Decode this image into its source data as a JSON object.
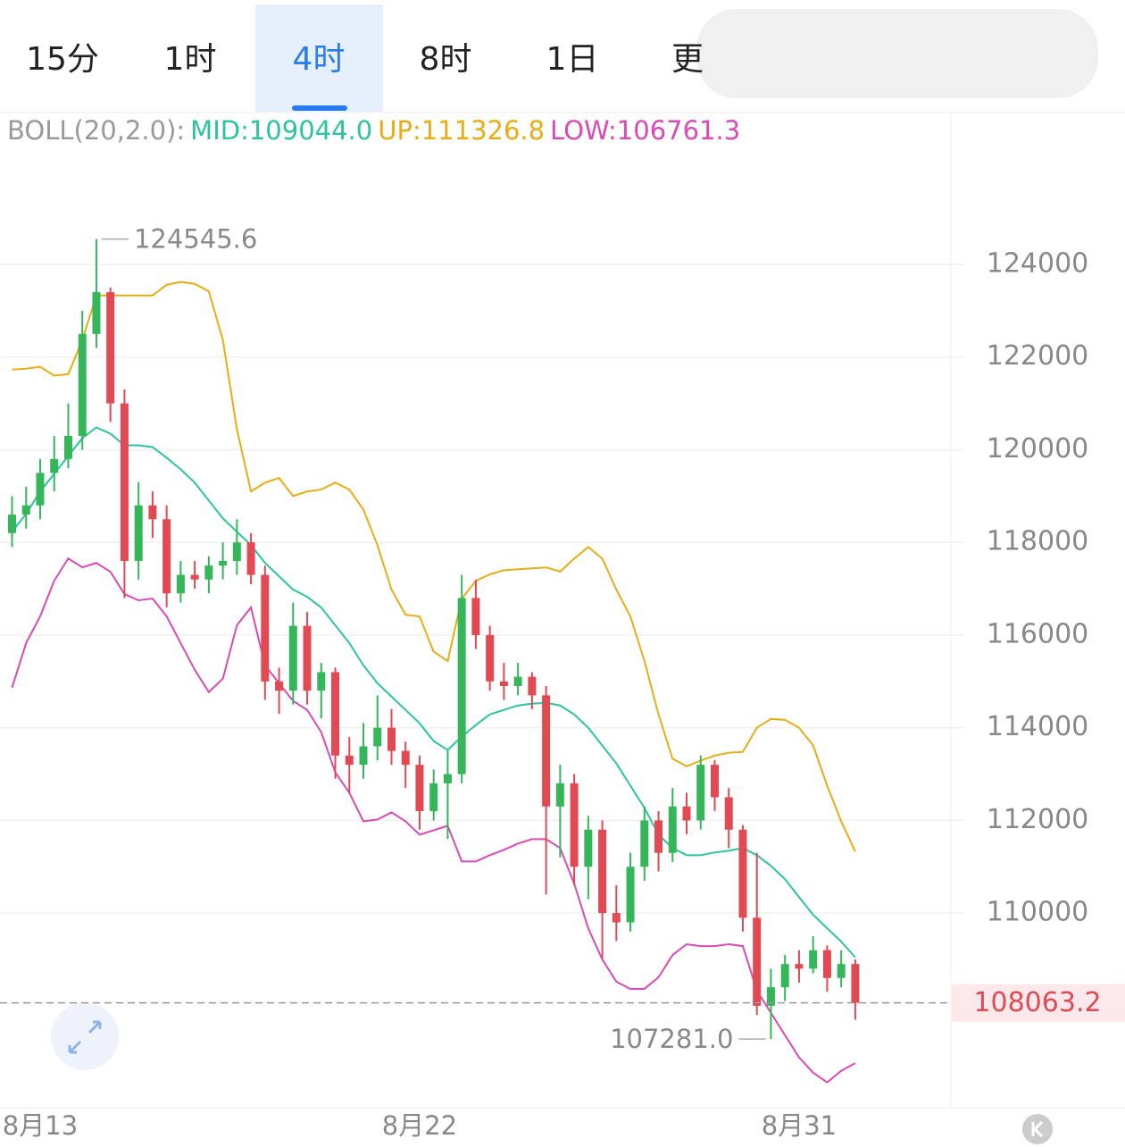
{
  "tabs": [
    "15分",
    "1时",
    "4时",
    "8时",
    "1日",
    "更"
  ],
  "chart_data": {
    "type": "candlestick",
    "indicator_label": "BOLL(20,2.0):",
    "categories": [
      null,
      null,
      "8月13",
      null,
      null,
      null,
      null,
      null,
      null,
      null,
      null,
      null,
      null,
      null,
      null,
      null,
      null,
      null,
      null,
      null,
      null,
      null,
      null,
      null,
      null,
      null,
      null,
      null,
      null,
      "8月22",
      null,
      null,
      null,
      null,
      null,
      null,
      null,
      null,
      null,
      null,
      null,
      null,
      null,
      null,
      null,
      null,
      null,
      null,
      null,
      null,
      null,
      null,
      null,
      null,
      null,
      null,
      "8月31",
      null,
      null,
      null,
      null
    ],
    "open": [
      118200,
      118600,
      118800,
      119500,
      119800,
      120300,
      122500,
      123400,
      121000,
      117600,
      118800,
      118500,
      116900,
      117300,
      117200,
      117500,
      117600,
      118000,
      117300,
      115000,
      114800,
      116200,
      114800,
      115200,
      113400,
      113200,
      113600,
      114000,
      113500,
      113200,
      112200,
      112800,
      113000,
      116800,
      116000,
      115000,
      114900,
      115100,
      114700,
      112300,
      112800,
      111000,
      111800,
      110000,
      109800,
      111000,
      112000,
      111300,
      112300,
      112000,
      113200,
      112500,
      111800,
      109900,
      108000,
      108400,
      108900,
      108800,
      109200,
      108600,
      108900
    ],
    "high": [
      119000,
      119200,
      119800,
      120300,
      121000,
      123000,
      124545.6,
      123500,
      121300,
      119300,
      119100,
      118800,
      117600,
      117600,
      117700,
      118000,
      118500,
      118200,
      117500,
      115300,
      116700,
      116500,
      115400,
      115300,
      113800,
      114100,
      114700,
      114400,
      113700,
      113400,
      113100,
      113500,
      117300,
      117200,
      116200,
      115400,
      115400,
      115200,
      114900,
      113200,
      113000,
      112100,
      112000,
      110600,
      111300,
      112300,
      112200,
      112700,
      112600,
      113400,
      113300,
      112700,
      111900,
      111300,
      108800,
      109100,
      109200,
      109500,
      109300,
      109200,
      109000
    ],
    "low": [
      117900,
      118300,
      118500,
      119100,
      119600,
      120000,
      122200,
      120600,
      116800,
      117200,
      118100,
      116600,
      116700,
      117000,
      116900,
      117200,
      117300,
      117100,
      114600,
      114300,
      114500,
      114500,
      114200,
      112900,
      112600,
      112900,
      113300,
      113200,
      112700,
      111800,
      112000,
      111600,
      112800,
      115700,
      114800,
      114600,
      114700,
      114400,
      110400,
      111200,
      110600,
      110300,
      109000,
      109400,
      109600,
      110700,
      110900,
      111100,
      111700,
      111800,
      112200,
      111400,
      109600,
      107800,
      107281.0,
      108100,
      108500,
      108700,
      108300,
      108400,
      107700
    ],
    "close": [
      118600,
      118800,
      119500,
      119800,
      120300,
      122500,
      123400,
      121000,
      117600,
      118800,
      118500,
      116900,
      117300,
      117200,
      117500,
      117600,
      118000,
      117300,
      115000,
      114800,
      116200,
      114800,
      115200,
      113400,
      113200,
      113600,
      114000,
      113500,
      113200,
      112200,
      112800,
      113000,
      116800,
      116000,
      115000,
      114900,
      115100,
      114700,
      112300,
      112800,
      111000,
      111800,
      110000,
      109800,
      111000,
      112000,
      111300,
      112300,
      112000,
      113200,
      112500,
      111800,
      109900,
      108000,
      108400,
      108900,
      108800,
      109200,
      108600,
      108900,
      108063.2
    ],
    "up_color": "#35b65a",
    "down_color": "#e14953",
    "series": [
      {
        "name": "MID:109044.0",
        "color": "#2cc3a0",
        "values": [
          118231,
          118615,
          119096,
          119481,
          119865,
          120250,
          120481,
          120346,
          120096,
          120096,
          120058,
          119827,
          119577,
          119289,
          118904,
          118519,
          118231,
          117942,
          117558,
          117269,
          116981,
          116827,
          116596,
          116212,
          115827,
          115346,
          114962,
          114673,
          114385,
          114096,
          113712,
          113519,
          113808,
          114058,
          114288,
          114385,
          114481,
          114519,
          114538,
          114481,
          114288,
          114000,
          113615,
          113231,
          112750,
          112269,
          111692,
          111404,
          111250,
          111250,
          111308,
          111346,
          111404,
          111250,
          111019,
          110731,
          110346,
          109962,
          109673,
          109385,
          109044.0
        ]
      },
      {
        "name": "UP:111326.8",
        "color": "#e8ad14",
        "values": [
          121730,
          121750,
          121790,
          121600,
          121630,
          122370,
          123330,
          123330,
          123330,
          123330,
          123330,
          123560,
          123620,
          123580,
          123420,
          122370,
          120440,
          119100,
          119290,
          119390,
          119000,
          119100,
          119140,
          119290,
          119140,
          118710,
          117940,
          116980,
          116440,
          116400,
          115640,
          115440,
          116790,
          117170,
          117310,
          117400,
          117420,
          117440,
          117460,
          117370,
          117650,
          117900,
          117650,
          116980,
          116400,
          115440,
          114290,
          113330,
          113170,
          113290,
          113400,
          113460,
          113480,
          114000,
          114190,
          114170,
          114000,
          113620,
          112750,
          111980,
          111326.8
        ]
      },
      {
        "name": "LOW:106761.3",
        "color": "#d84bb6",
        "values": [
          114865,
          115827,
          116404,
          117173,
          117654,
          117462,
          117558,
          117365,
          116885,
          116750,
          116788,
          116404,
          115827,
          115250,
          114769,
          115058,
          116212,
          116596,
          115346,
          114962,
          114577,
          114385,
          113904,
          113038,
          112596,
          111981,
          112019,
          112173,
          111981,
          111692,
          111788,
          111885,
          111115,
          111115,
          111250,
          111365,
          111500,
          111596,
          111596,
          111404,
          110635,
          109673,
          109000,
          108519,
          108365,
          108365,
          108615,
          109096,
          109327,
          109288,
          109288,
          109327,
          109288,
          108327,
          107846,
          107365,
          106885,
          106558,
          106346,
          106596,
          106761.3
        ]
      }
    ],
    "max_label": {
      "value": 124545.6,
      "label": "124545.6"
    },
    "min_label": {
      "value": 107281.0,
      "label": "107281.0"
    },
    "last_price": {
      "value": 108063.2,
      "label": "108063.2"
    },
    "ylim": [
      105800,
      127200
    ],
    "yticks": [
      110000,
      112000,
      114000,
      116000,
      118000,
      120000,
      122000,
      124000
    ],
    "grid": true
  }
}
